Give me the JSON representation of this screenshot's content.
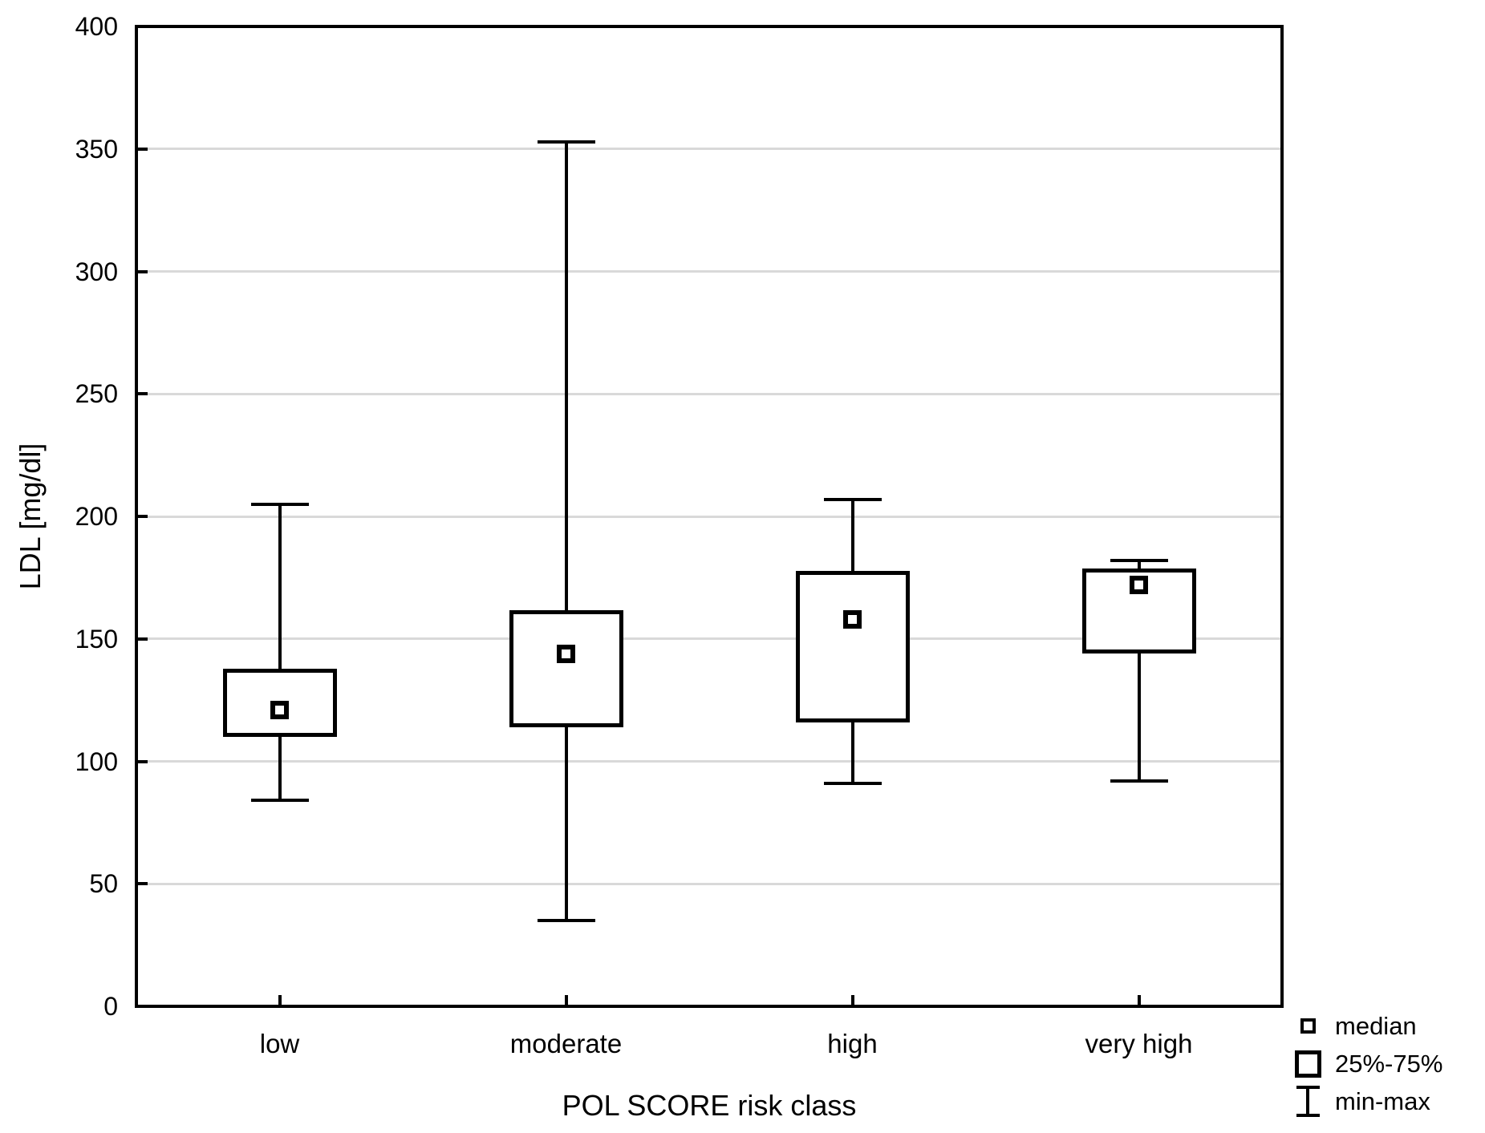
{
  "figure": {
    "background": "#ffffff"
  },
  "legend": {
    "position": "bottom-right",
    "items": [
      {
        "symbol": "median-marker-icon",
        "label": "median"
      },
      {
        "symbol": "iqr-box-icon",
        "label": "25%-75%"
      },
      {
        "symbol": "min-max-whisker-icon",
        "label": "min-max"
      }
    ]
  },
  "chart_data": {
    "type": "box",
    "title": "",
    "xlabel": "POL SCORE risk class",
    "ylabel": "LDL [mg/dl]",
    "ylim": [
      0,
      400
    ],
    "ytick_step": 50,
    "ytick_labels": [
      "0",
      "50",
      "100",
      "150",
      "200",
      "250",
      "300",
      "350",
      "400"
    ],
    "grid": "horizontal-only",
    "legend_position": "bottom-right",
    "categories": [
      "low",
      "moderate",
      "high",
      "very high"
    ],
    "series": [
      {
        "name": "low",
        "min": 84,
        "q1": 111,
        "median": 121,
        "q3": 137,
        "max": 205
      },
      {
        "name": "moderate",
        "min": 35,
        "q1": 115,
        "median": 144,
        "q3": 161,
        "max": 353
      },
      {
        "name": "high",
        "min": 91,
        "q1": 117,
        "median": 158,
        "q3": 177,
        "max": 207
      },
      {
        "name": "very high",
        "min": 92,
        "q1": 145,
        "median": 172,
        "q3": 178,
        "max": 182
      }
    ],
    "colors": {
      "line": "#000000",
      "grid": "#d9d9d9",
      "background": "#ffffff"
    }
  }
}
